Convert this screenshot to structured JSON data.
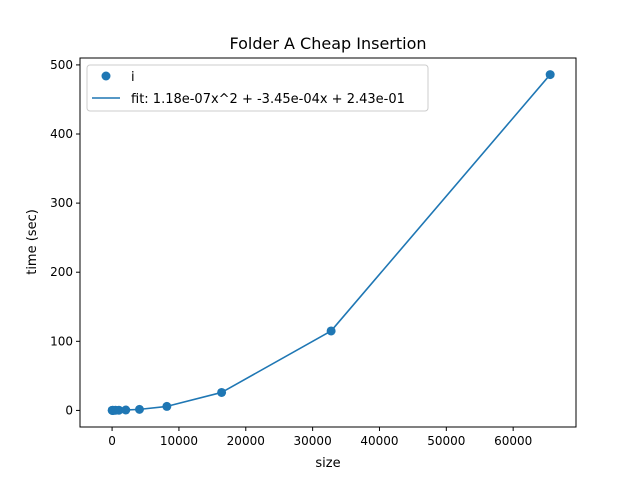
{
  "chart_data": {
    "type": "scatter",
    "title": "Folder A Cheap Insertion",
    "xlabel": "size",
    "ylabel": "time (sec)",
    "xlim": [
      -4800,
      69400
    ],
    "ylim": [
      -24,
      510
    ],
    "xticks": [
      0,
      10000,
      20000,
      30000,
      40000,
      50000,
      60000
    ],
    "xtick_labels": [
      "0",
      "10000",
      "20000",
      "30000",
      "40000",
      "50000",
      "60000"
    ],
    "yticks": [
      0,
      100,
      200,
      300,
      400,
      500
    ],
    "ytick_labels": [
      "0",
      "100",
      "200",
      "300",
      "400",
      "500"
    ],
    "grid": false,
    "legend_position": "upper-left",
    "series": [
      {
        "name": "i",
        "kind": "scatter",
        "color": "#1f77b4",
        "x": [
          16,
          32,
          64,
          128,
          256,
          512,
          1024,
          2048,
          4096,
          8192,
          16384,
          32768,
          65536
        ],
        "y": [
          0.1,
          0.1,
          0.1,
          0.1,
          0.1,
          0.2,
          0.3,
          0.6,
          1.5,
          5.8,
          26.0,
          115.0,
          486.0
        ]
      },
      {
        "name": "fit: 1.18e-07x^2 + -3.45e-04x + 2.43e-01",
        "kind": "line",
        "color": "#1f77b4",
        "x": [
          16,
          32,
          64,
          128,
          256,
          512,
          1024,
          2048,
          4096,
          8192,
          16384,
          32768,
          65536
        ],
        "y": [
          0.1,
          0.1,
          0.1,
          0.1,
          0.1,
          0.2,
          0.3,
          0.6,
          1.5,
          5.8,
          26.0,
          115.0,
          486.0
        ]
      }
    ]
  }
}
